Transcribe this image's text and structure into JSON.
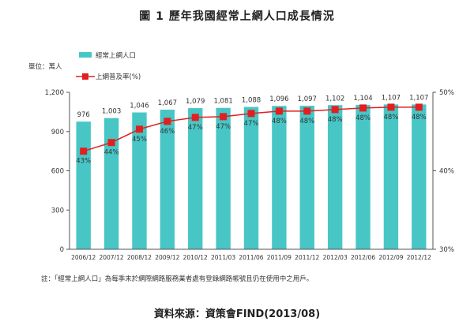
{
  "title": "圖 1 歷年我國經常上網人口成長情況",
  "note": "註：「經常上網人口」為每季末於網際網路服務業者處有登錄網路帳號且仍在使用中之用戶。",
  "source": "資料來源：資策會FIND(2013/08)",
  "colors": {
    "bar": "#48c6c6",
    "line": "#e02020",
    "marker": "#e02020"
  },
  "chart_data": {
    "type": "bar",
    "categories": [
      "2006/12",
      "2007/12",
      "2008/12",
      "2009/12",
      "2010/12",
      "2011/03",
      "2011/06",
      "2011/09",
      "2011/12",
      "2012/03",
      "2012/06",
      "2012/09",
      "2012/12"
    ],
    "unit_label": "單位：萬人",
    "ylim": [
      0,
      1200
    ],
    "yticks": [
      "0",
      "300",
      "600",
      "900",
      "1,200"
    ],
    "y2lim": [
      30,
      50
    ],
    "y2ticks": [
      "30%",
      "40%",
      "50%"
    ],
    "legend_position": "top-left",
    "series": [
      {
        "name": "經常上網人口",
        "type": "bar",
        "axis": "left",
        "values": [
          976,
          1003,
          1046,
          1067,
          1079,
          1081,
          1088,
          1096,
          1097,
          1102,
          1104,
          1107,
          1107
        ],
        "labels": [
          "976",
          "1,003",
          "1,046",
          "1,067",
          "1,079",
          "1,081",
          "1,088",
          "1,096",
          "1,097",
          "1,102",
          "1,104",
          "1,107",
          "1,107"
        ]
      },
      {
        "name": "上網普及率(%)",
        "type": "line",
        "axis": "right",
        "values": [
          42.5,
          43.6,
          45.3,
          46.3,
          46.8,
          46.9,
          47.3,
          47.6,
          47.6,
          47.8,
          48.0,
          48.1,
          48.1
        ],
        "labels": [
          "43%",
          "44%",
          "45%",
          "46%",
          "47%",
          "47%",
          "47%",
          "48%",
          "48%",
          "48%",
          "48%",
          "48%",
          "48%"
        ]
      }
    ]
  }
}
